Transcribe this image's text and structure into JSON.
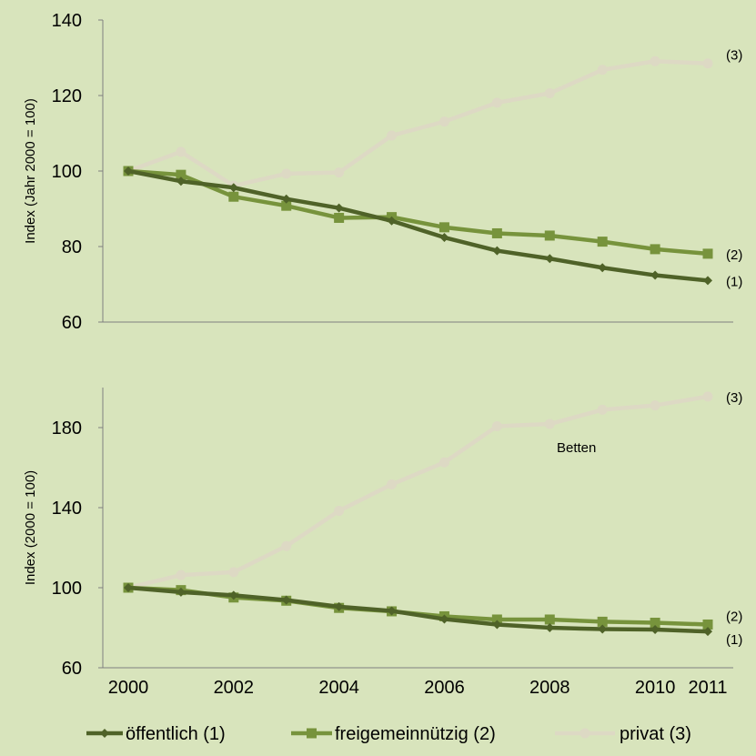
{
  "colors": {
    "background": "#d8e4bc",
    "axis": "#7f7f7f",
    "series": [
      "#4f6228",
      "#77933c",
      "#ddd9c4"
    ]
  },
  "legend": {
    "position": "bottom",
    "items": [
      "öffentlich (1)",
      "freigemeinnützig (2)",
      "privat (3)"
    ]
  },
  "chart_data": [
    {
      "type": "line",
      "title": "",
      "ylabel": "Index (Jahr 2000 = 100)",
      "ylim": [
        60,
        140
      ],
      "yticks": [
        60,
        80,
        100,
        120,
        140
      ],
      "x": [
        2000,
        2001,
        2002,
        2003,
        2004,
        2005,
        2006,
        2007,
        2008,
        2009,
        2010,
        2011
      ],
      "xaxis_labels_shown": false,
      "grid": false,
      "series": [
        {
          "name": "öffentlich (1)",
          "marker": "diamond",
          "end_label": "(1)",
          "values": [
            100,
            97.3,
            95.6,
            92.6,
            90.2,
            86.8,
            82.4,
            78.9,
            76.8,
            74.4,
            72.4,
            71.0
          ]
        },
        {
          "name": "freigemeinnützig (2)",
          "marker": "square",
          "end_label": "(2)",
          "values": [
            100,
            99.0,
            93.2,
            90.8,
            87.6,
            87.8,
            85.1,
            83.5,
            82.9,
            81.3,
            79.3,
            78.1
          ]
        },
        {
          "name": "privat (3)",
          "marker": "circle",
          "end_label": "(3)",
          "values": [
            100,
            105.1,
            96.1,
            99.3,
            99.6,
            109.4,
            113.1,
            118.1,
            120.6,
            126.8,
            129.1,
            128.5
          ]
        }
      ]
    },
    {
      "type": "line",
      "title": "",
      "annotation": "Betten",
      "ylabel": "Index (2000 = 100)",
      "ylim": [
        60,
        200
      ],
      "yticks": [
        60,
        100,
        140,
        180
      ],
      "x": [
        2000,
        2001,
        2002,
        2003,
        2004,
        2005,
        2006,
        2007,
        2008,
        2009,
        2010,
        2011
      ],
      "xticks": [
        2000,
        2002,
        2004,
        2006,
        2008,
        2010,
        2011
      ],
      "grid": false,
      "series": [
        {
          "name": "öffentlich (1)",
          "marker": "diamond",
          "end_label": "(1)",
          "values": [
            100,
            97.8,
            96.2,
            93.8,
            90.5,
            88.4,
            84.3,
            81.6,
            80.0,
            79.3,
            79.1,
            78.1
          ]
        },
        {
          "name": "freigemeinnützig (2)",
          "marker": "square",
          "end_label": "(2)",
          "values": [
            100,
            98.8,
            95.1,
            93.5,
            89.9,
            88.2,
            85.7,
            84.1,
            84.1,
            83.0,
            82.5,
            81.6
          ]
        },
        {
          "name": "privat (3)",
          "marker": "circle",
          "end_label": "(3)",
          "values": [
            100,
            106.3,
            107.8,
            120.8,
            138.4,
            151.6,
            162.6,
            180.7,
            181.8,
            188.9,
            191.1,
            195.5
          ]
        }
      ]
    }
  ]
}
